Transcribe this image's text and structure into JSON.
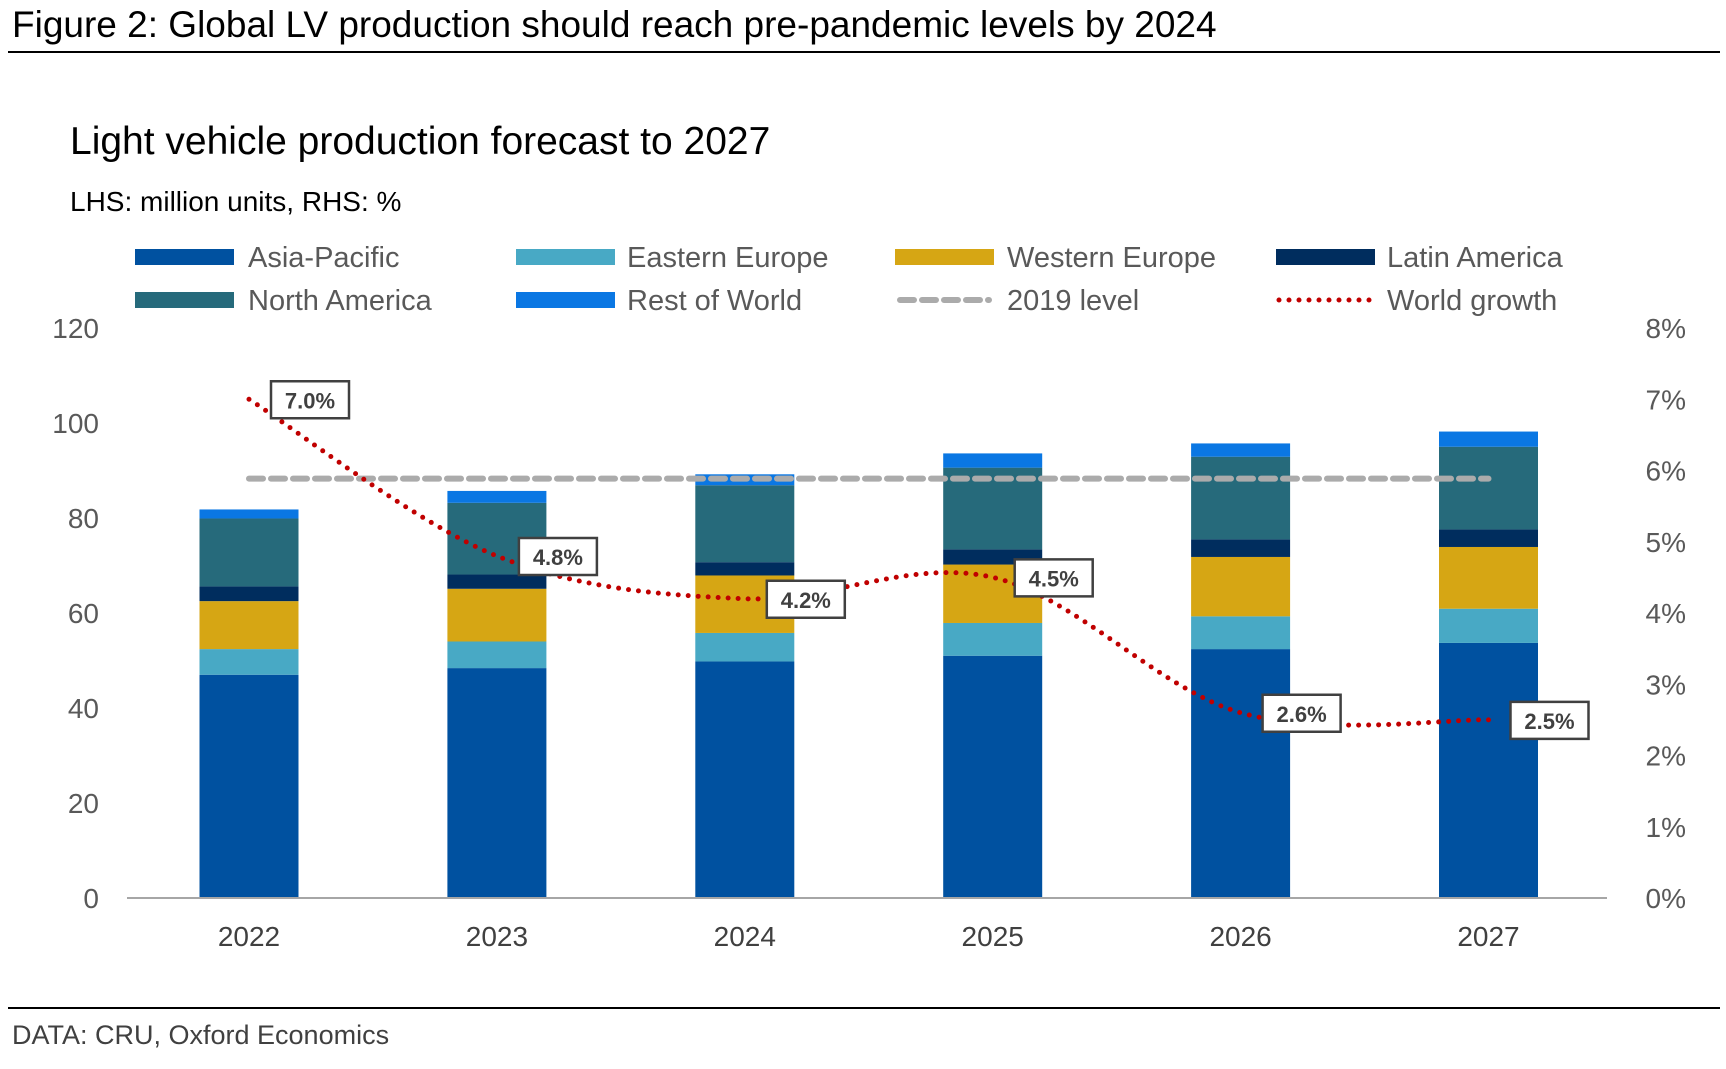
{
  "figure_title": "Figure 2: Global LV production should reach pre-pandemic levels by 2024",
  "source": "DATA: CRU, Oxford Economics",
  "chart_data": {
    "type": "bar",
    "stacked": true,
    "title": "Light vehicle production forecast to 2027",
    "subtitle": "LHS: million units, RHS: %",
    "categories": [
      "2022",
      "2023",
      "2024",
      "2025",
      "2026",
      "2027"
    ],
    "y_left": {
      "range": [
        0,
        120
      ],
      "ticks": [
        0,
        20,
        40,
        60,
        80,
        100,
        120
      ]
    },
    "y_right": {
      "range": [
        0,
        8
      ],
      "ticks": [
        "0%",
        "1%",
        "2%",
        "3%",
        "4%",
        "5%",
        "6%",
        "7%",
        "8%"
      ]
    },
    "grid": false,
    "legend_position": "top",
    "series": [
      {
        "name": "Asia-Pacific",
        "color": "#0051A0",
        "values": [
          47.0,
          48.4,
          49.8,
          51.0,
          52.4,
          53.7
        ]
      },
      {
        "name": "Eastern Europe",
        "color": "#48A9C5",
        "values": [
          5.4,
          5.6,
          6.0,
          6.9,
          6.9,
          7.2
        ]
      },
      {
        "name": "Western Europe",
        "color": "#D6A614",
        "values": [
          10.1,
          11.1,
          12.1,
          12.3,
          12.5,
          13.0
        ]
      },
      {
        "name": "Latin America",
        "color": "#002D5E",
        "values": [
          3.1,
          3.0,
          2.8,
          3.2,
          3.7,
          3.7
        ]
      },
      {
        "name": "North America",
        "color": "#266A7B",
        "values": [
          14.3,
          15.1,
          16.2,
          17.2,
          17.4,
          17.4
        ]
      },
      {
        "name": "Rest of World",
        "color": "#0A77E3",
        "values": [
          1.9,
          2.5,
          2.3,
          3.0,
          2.8,
          3.2
        ]
      }
    ],
    "reference_line": {
      "name": "2019 level",
      "color": "#ABABAB",
      "style": "dashed",
      "value": 88.3,
      "axis": "left"
    },
    "line_series": {
      "name": "World growth",
      "color": "#C00000",
      "style": "dotted",
      "axis": "right",
      "values": [
        7.0,
        4.8,
        4.2,
        4.5,
        2.6,
        2.5
      ],
      "labels": [
        "7.0%",
        "4.8%",
        "4.2%",
        "4.5%",
        "2.6%",
        "2.5%"
      ]
    }
  }
}
